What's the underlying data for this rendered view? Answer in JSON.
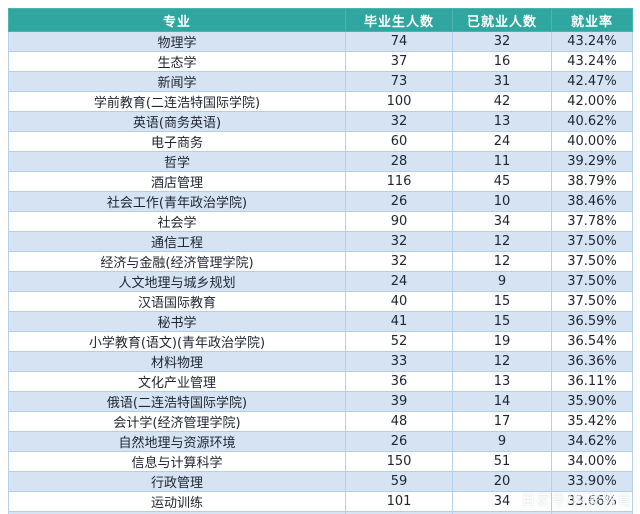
{
  "chart_data": {
    "type": "table",
    "columns": [
      "专业",
      "毕业生人数",
      "已就业人数",
      "就业率"
    ],
    "rows": [
      [
        "物理学",
        "74",
        "32",
        "43.24%"
      ],
      [
        "生态学",
        "37",
        "16",
        "43.24%"
      ],
      [
        "新闻学",
        "73",
        "31",
        "42.47%"
      ],
      [
        "学前教育(二连浩特国际学院)",
        "100",
        "42",
        "42.00%"
      ],
      [
        "英语(商务英语)",
        "32",
        "13",
        "40.62%"
      ],
      [
        "电子商务",
        "60",
        "24",
        "40.00%"
      ],
      [
        "哲学",
        "28",
        "11",
        "39.29%"
      ],
      [
        "酒店管理",
        "116",
        "45",
        "38.79%"
      ],
      [
        "社会工作(青年政治学院)",
        "26",
        "10",
        "38.46%"
      ],
      [
        "社会学",
        "90",
        "34",
        "37.78%"
      ],
      [
        "通信工程",
        "32",
        "12",
        "37.50%"
      ],
      [
        "经济与金融(经济管理学院)",
        "32",
        "12",
        "37.50%"
      ],
      [
        "人文地理与城乡规划",
        "24",
        "9",
        "37.50%"
      ],
      [
        "汉语国际教育",
        "40",
        "15",
        "37.50%"
      ],
      [
        "秘书学",
        "41",
        "15",
        "36.59%"
      ],
      [
        "小学教育(语文)(青年政治学院)",
        "52",
        "19",
        "36.54%"
      ],
      [
        "材料物理",
        "33",
        "12",
        "36.36%"
      ],
      [
        "文化产业管理",
        "36",
        "13",
        "36.11%"
      ],
      [
        "俄语(二连浩特国际学院)",
        "39",
        "14",
        "35.90%"
      ],
      [
        "会计学(经济管理学院)",
        "48",
        "17",
        "35.42%"
      ],
      [
        "自然地理与资源环境",
        "26",
        "9",
        "34.62%"
      ],
      [
        "信息与计算科学",
        "150",
        "51",
        "34.00%"
      ],
      [
        "行政管理",
        "59",
        "20",
        "33.90%"
      ],
      [
        "运动训练",
        "101",
        "34",
        "33.66%"
      ]
    ],
    "partial_row_visible_at_bottom": true
  },
  "colors": {
    "header_bg": "#2fa69f",
    "header_text": "#ffffff",
    "row_alt": "#d5e3f3",
    "row_plain": "#ffffff",
    "grid_border": "#b3cfe9",
    "body_text": "#1f2430"
  },
  "watermark": {
    "text": "百家号/内蒙教育"
  }
}
